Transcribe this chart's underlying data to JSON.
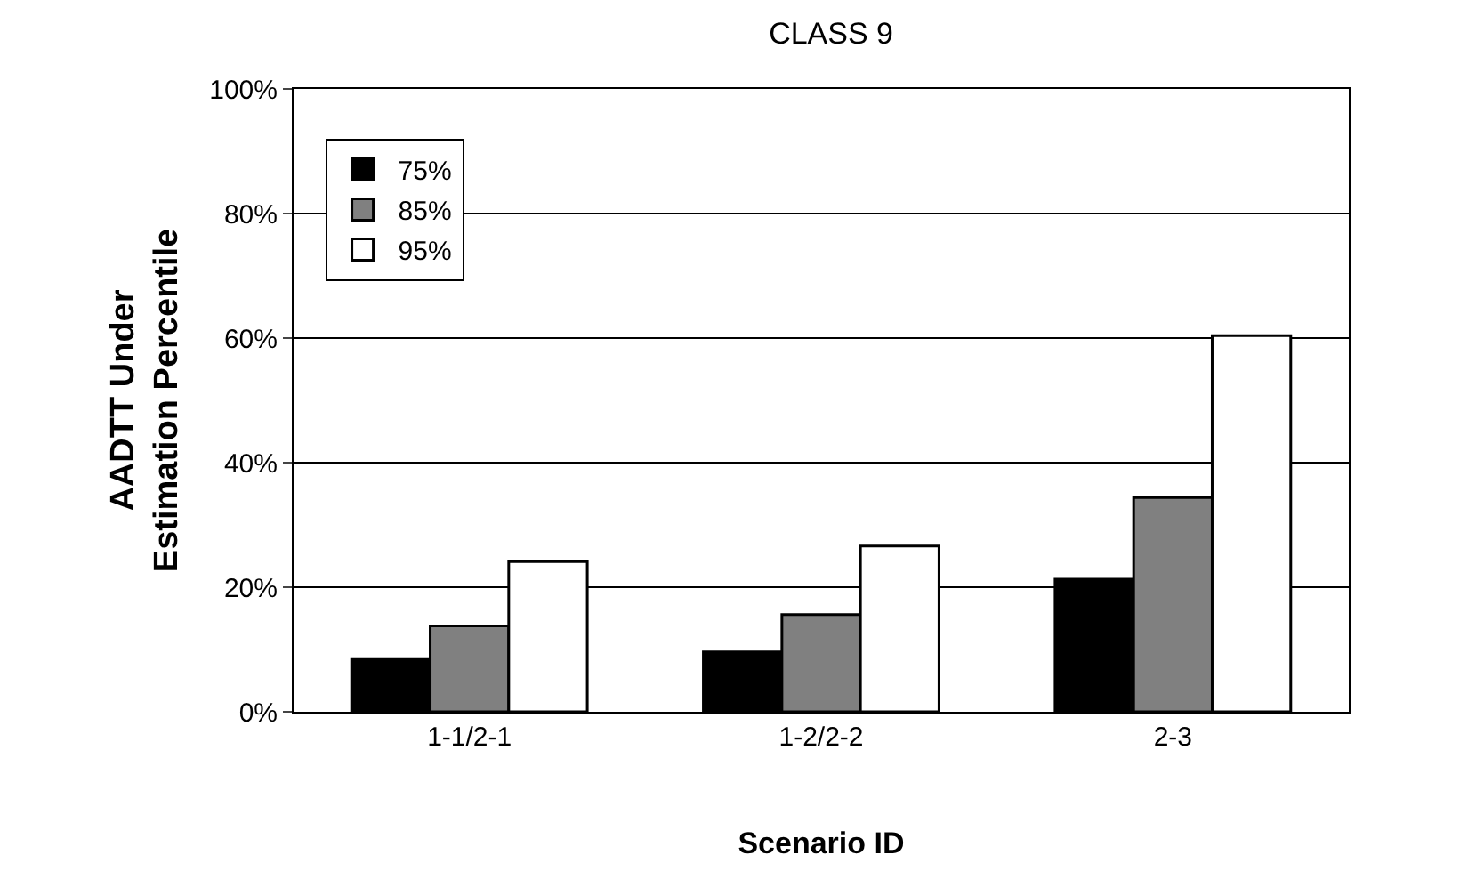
{
  "chart_data": {
    "type": "bar",
    "title": "CLASS 9",
    "xlabel": "Scenario ID",
    "ylabel": "AADTT Under\nEstimation Percentile",
    "categories": [
      "1-1/2-1",
      "1-2/2-2",
      "2-3"
    ],
    "series": [
      {
        "name": "75%",
        "color": "#000000",
        "values": [
          8.4,
          9.6,
          21.3
        ]
      },
      {
        "name": "85%",
        "color": "#808080",
        "values": [
          13.8,
          15.6,
          34.4
        ]
      },
      {
        "name": "95%",
        "color": "#ffffff",
        "values": [
          24.1,
          26.6,
          60.4
        ]
      }
    ],
    "ylim": [
      0,
      100
    ],
    "yticks": [
      {
        "value": 0,
        "label": "0%"
      },
      {
        "value": 20,
        "label": "20%"
      },
      {
        "value": 40,
        "label": "40%"
      },
      {
        "value": 60,
        "label": "60%"
      },
      {
        "value": 80,
        "label": "80%"
      },
      {
        "value": 100,
        "label": "100%"
      }
    ],
    "grid": "y",
    "legend": "top left"
  }
}
